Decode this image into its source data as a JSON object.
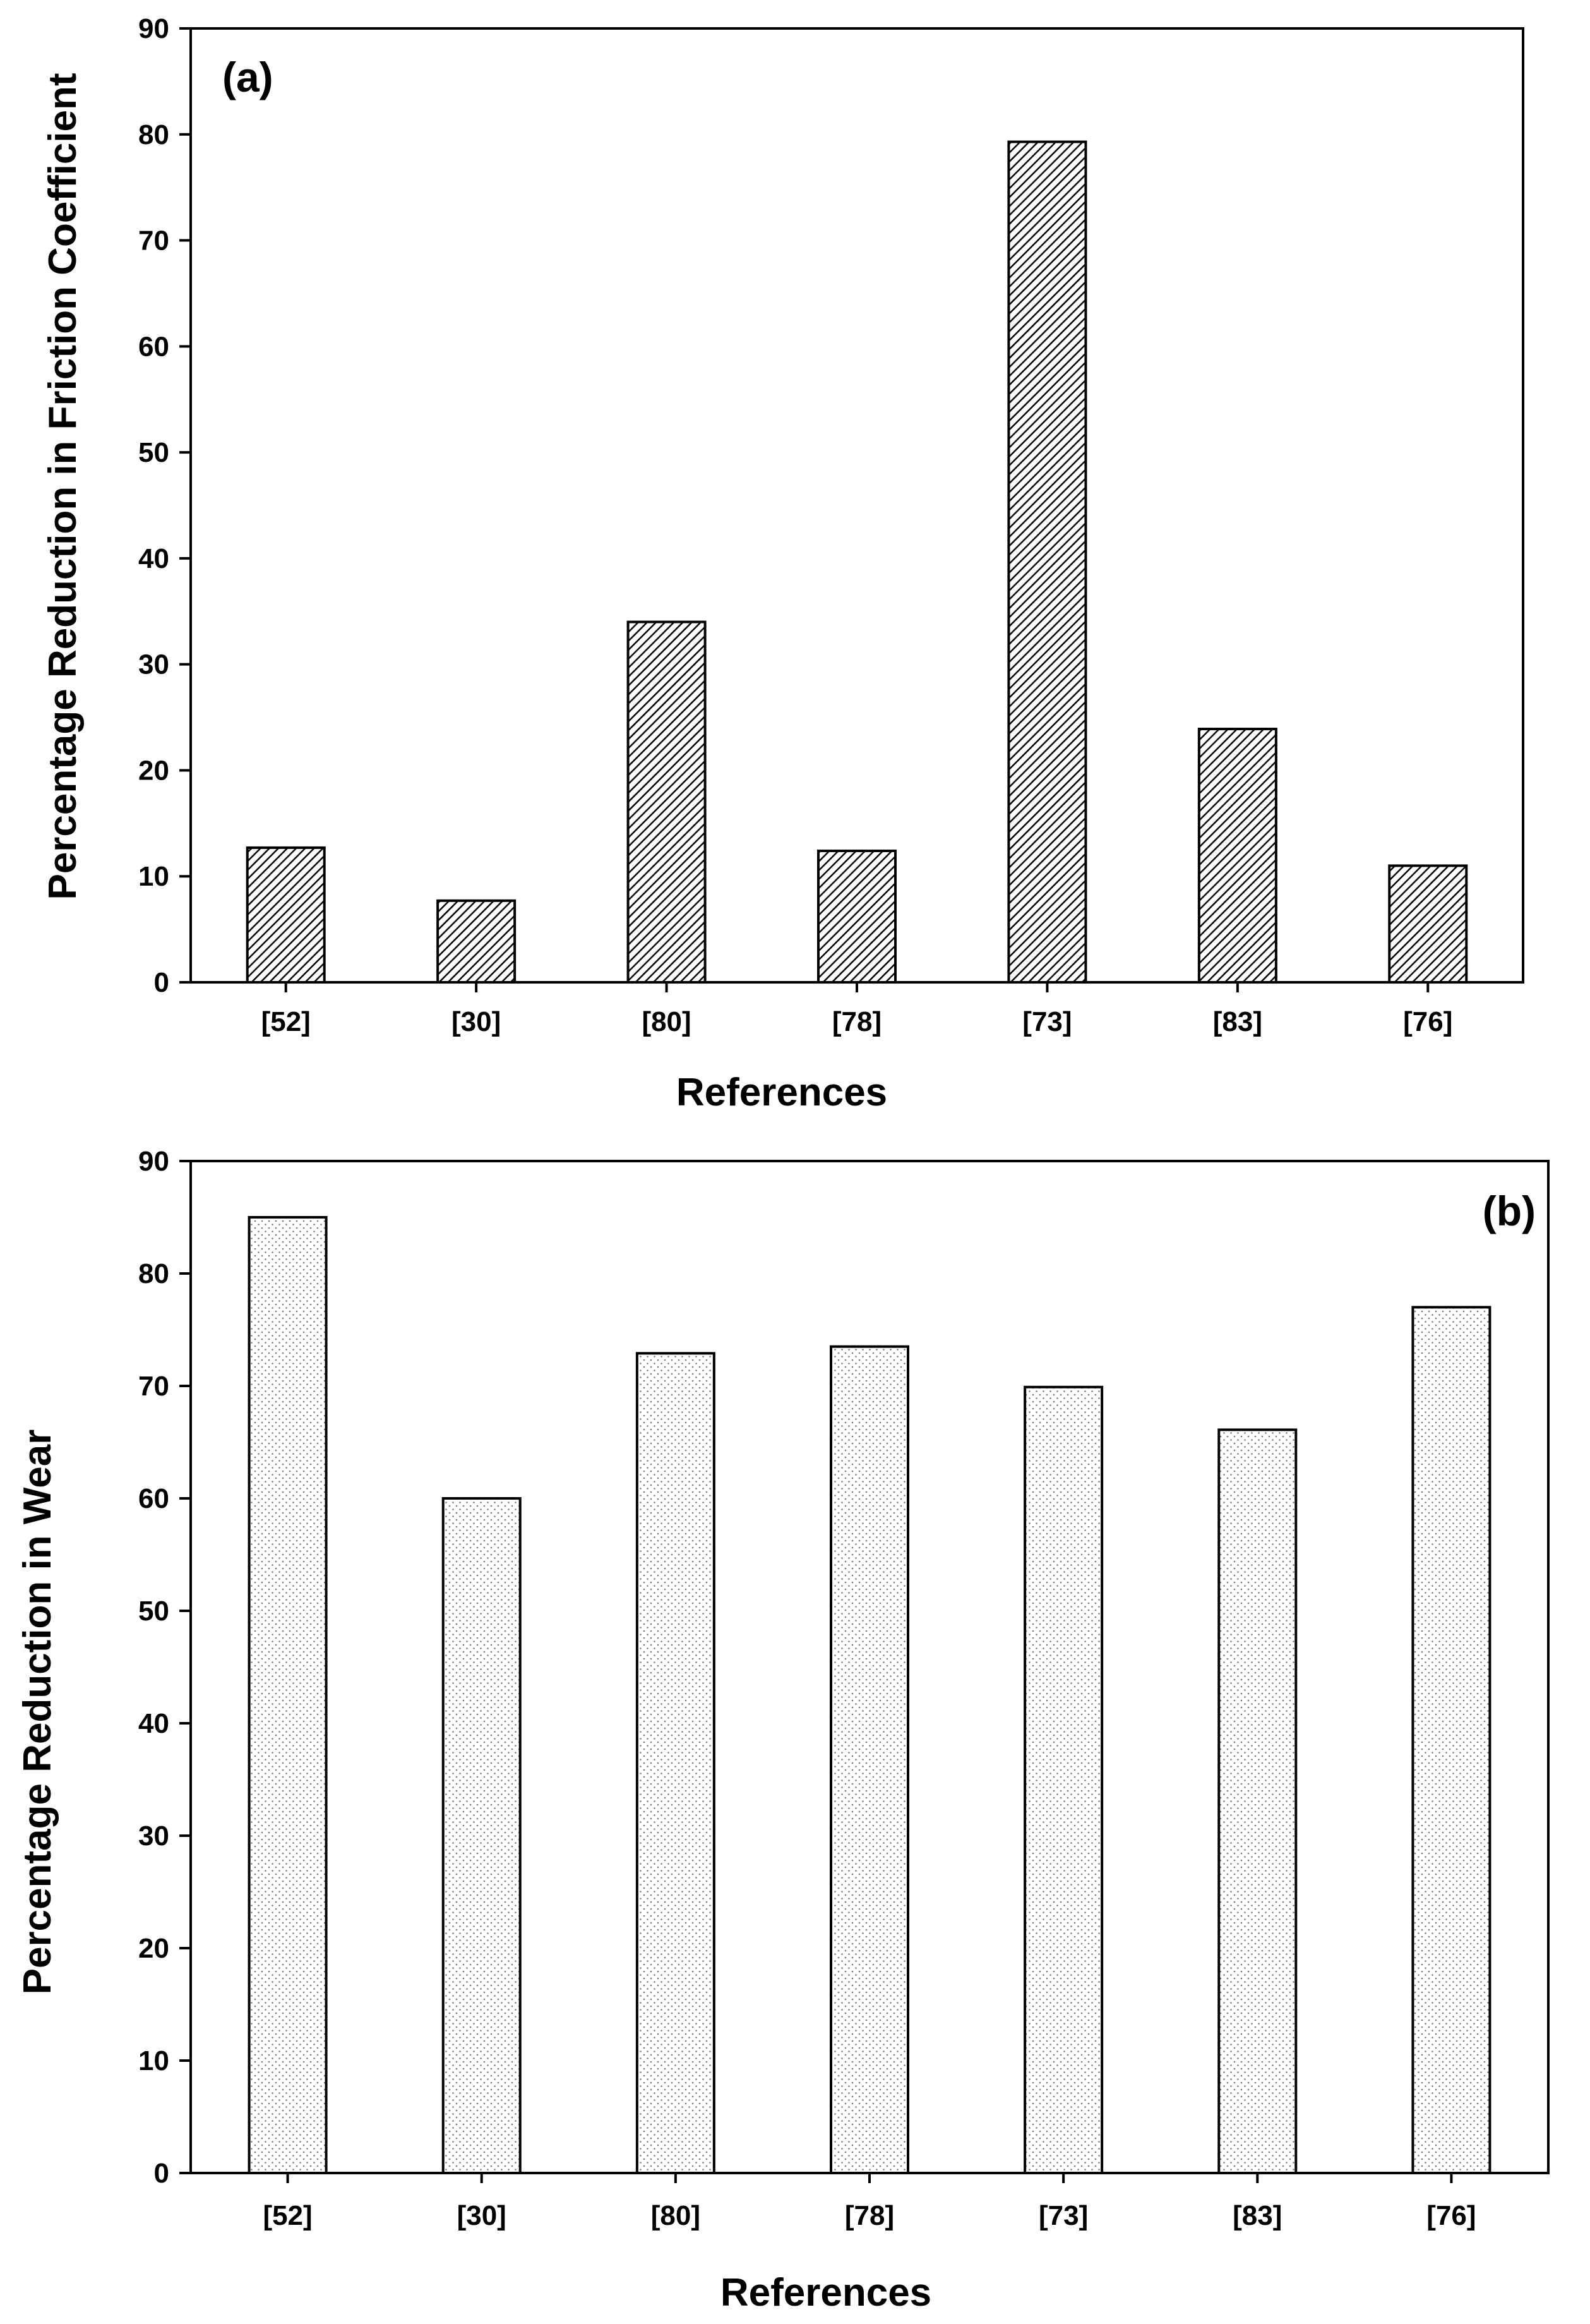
{
  "chart_data": [
    {
      "type": "bar",
      "panel_label": "(a)",
      "categories": [
        "[52]",
        "[30]",
        "[80]",
        "[78]",
        "[73]",
        "[83]",
        "[76]"
      ],
      "values": [
        12.7,
        7.7,
        34,
        12.4,
        79.3,
        23.9,
        11
      ],
      "yticks": [
        "0",
        "10",
        "20",
        "30",
        "40",
        "50",
        "60",
        "70",
        "80",
        "90"
      ],
      "ylim": [
        0,
        90
      ],
      "xlabel": "References",
      "ylabel": "Percentage Reduction in Friction Coefficient",
      "fill_pattern": "diagonal-hatch",
      "grid": false
    },
    {
      "type": "bar",
      "panel_label": "(b)",
      "categories": [
        "[52]",
        "[30]",
        "[80]",
        "[78]",
        "[73]",
        "[83]",
        "[76]"
      ],
      "values": [
        85,
        60,
        72.9,
        73.5,
        69.9,
        66.1,
        77
      ],
      "yticks": [
        "0",
        "10",
        "20",
        "30",
        "40",
        "50",
        "60",
        "70",
        "80",
        "90"
      ],
      "ylim": [
        0,
        90
      ],
      "xlabel": "References",
      "ylabel": "Percentage Reduction in Wear",
      "fill_pattern": "fine-dots",
      "grid": false
    }
  ],
  "colors": {
    "ink": "#000000",
    "bar_fill": "#ffffff",
    "dot": "#7a7a7a"
  }
}
